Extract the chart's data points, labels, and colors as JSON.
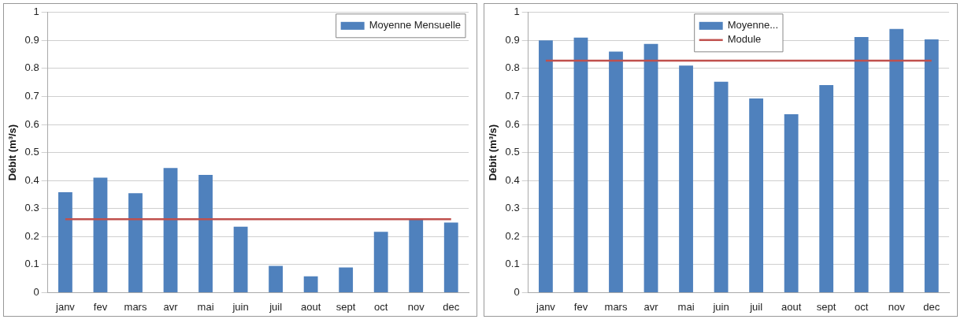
{
  "chart_data": [
    {
      "type": "bar",
      "ylabel": "Débit (m³/s)",
      "categories": [
        "janv",
        "fev",
        "mars",
        "avr",
        "mai",
        "juin",
        "juil",
        "aout",
        "sept",
        "oct",
        "nov",
        "dec"
      ],
      "series": [
        {
          "name": "Moyenne Mensuelle",
          "color": "#4f81bd",
          "values": [
            0.358,
            0.41,
            0.355,
            0.445,
            0.42,
            0.235,
            0.095,
            0.058,
            0.09,
            0.217,
            0.263,
            0.25
          ]
        },
        {
          "type": "line",
          "color": "#c0504d",
          "values": [
            0.262,
            0.262,
            0.262,
            0.262,
            0.262,
            0.262,
            0.262,
            0.262,
            0.262,
            0.262,
            0.262,
            0.262
          ]
        }
      ],
      "ylim": [
        0,
        1
      ],
      "yticks": [
        0,
        0.1,
        0.2,
        0.3,
        0.4,
        0.5,
        0.6,
        0.7,
        0.8,
        0.9,
        1
      ],
      "grid": "y",
      "legend": "top right",
      "marker": "none"
    },
    {
      "type": "bar",
      "ylabel": "Débit (m³/s)",
      "categories": [
        "janv",
        "fev",
        "mars",
        "avr",
        "mai",
        "juin",
        "juil",
        "aout",
        "sept",
        "oct",
        "nov",
        "dec"
      ],
      "series": [
        {
          "name": "Moyenne...",
          "color": "#4f81bd",
          "values": [
            0.9,
            0.91,
            0.86,
            0.888,
            0.81,
            0.753,
            0.693,
            0.637,
            0.741,
            0.912,
            0.941,
            0.904
          ]
        },
        {
          "type": "line",
          "name": "Module",
          "color": "#c0504d",
          "values": [
            0.828,
            0.828,
            0.828,
            0.828,
            0.828,
            0.828,
            0.828,
            0.828,
            0.828,
            0.828,
            0.828,
            0.828
          ]
        }
      ],
      "ylim": [
        0,
        1
      ],
      "yticks": [
        0,
        0.1,
        0.2,
        0.3,
        0.4,
        0.5,
        0.6,
        0.7,
        0.8,
        0.9,
        1
      ],
      "grid": "y",
      "legend": "top",
      "marker": "none"
    }
  ]
}
